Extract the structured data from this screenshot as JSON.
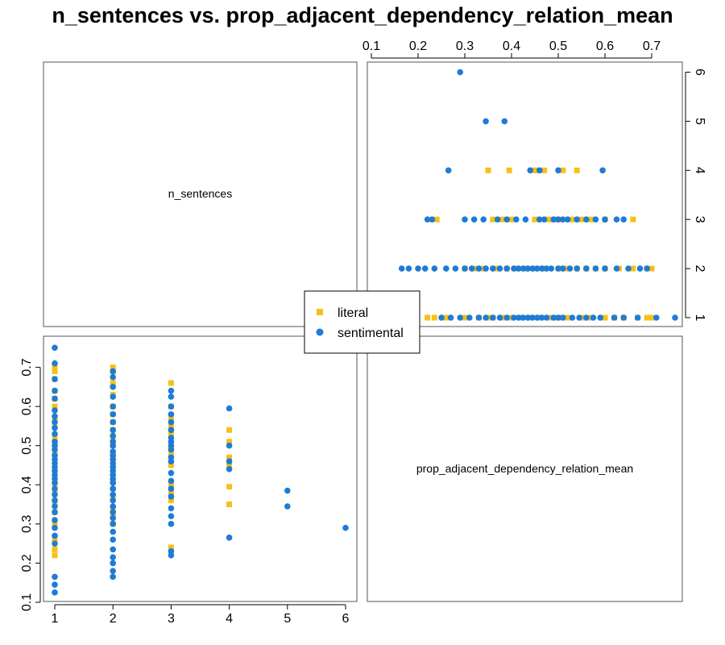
{
  "title": "n_sentences vs. prop_adjacent_dependency_relation_mean",
  "colors": {
    "literal": "#F5C118",
    "sentimental": "#1E7BD6",
    "frame": "#555555"
  },
  "legend": {
    "items": [
      {
        "label": "literal",
        "shape": "square"
      },
      {
        "label": "sentimental",
        "shape": "circle"
      }
    ]
  },
  "chart_data": {
    "type": "scatter",
    "variables": [
      "n_sentences",
      "prop_adjacent_dependency_relation_mean"
    ],
    "x_ticks": [
      1,
      2,
      3,
      4,
      5,
      6
    ],
    "y_ticks": [
      0.1,
      0.2,
      0.3,
      0.4,
      0.5,
      0.6,
      0.7
    ],
    "xlim": [
      1,
      6
    ],
    "ylim": [
      0.1,
      0.75
    ],
    "series": [
      {
        "name": "literal",
        "points": [
          [
            1,
            0.22
          ],
          [
            1,
            0.235
          ],
          [
            1,
            0.26
          ],
          [
            1,
            0.3
          ],
          [
            1,
            0.33
          ],
          [
            1,
            0.35
          ],
          [
            1,
            0.36
          ],
          [
            1,
            0.38
          ],
          [
            1,
            0.4
          ],
          [
            1,
            0.42
          ],
          [
            1,
            0.44
          ],
          [
            1,
            0.46
          ],
          [
            1,
            0.48
          ],
          [
            1,
            0.5
          ],
          [
            1,
            0.52
          ],
          [
            1,
            0.55
          ],
          [
            1,
            0.57
          ],
          [
            1,
            0.6
          ],
          [
            1,
            0.62
          ],
          [
            1,
            0.64
          ],
          [
            1,
            0.67
          ],
          [
            1,
            0.69
          ],
          [
            1,
            0.7
          ],
          [
            2,
            0.3
          ],
          [
            2,
            0.32
          ],
          [
            2,
            0.34
          ],
          [
            2,
            0.37
          ],
          [
            2,
            0.39
          ],
          [
            2,
            0.41
          ],
          [
            2,
            0.43
          ],
          [
            2,
            0.45
          ],
          [
            2,
            0.47
          ],
          [
            2,
            0.5
          ],
          [
            2,
            0.52
          ],
          [
            2,
            0.54
          ],
          [
            2,
            0.56
          ],
          [
            2,
            0.58
          ],
          [
            2,
            0.6
          ],
          [
            2,
            0.63
          ],
          [
            2,
            0.66
          ],
          [
            2,
            0.69
          ],
          [
            2,
            0.7
          ],
          [
            3,
            0.24
          ],
          [
            3,
            0.36
          ],
          [
            3,
            0.38
          ],
          [
            3,
            0.4
          ],
          [
            3,
            0.45
          ],
          [
            3,
            0.48
          ],
          [
            3,
            0.5
          ],
          [
            3,
            0.53
          ],
          [
            3,
            0.55
          ],
          [
            3,
            0.57
          ],
          [
            3,
            0.6
          ],
          [
            3,
            0.66
          ],
          [
            4,
            0.35
          ],
          [
            4,
            0.395
          ],
          [
            4,
            0.45
          ],
          [
            4,
            0.47
          ],
          [
            4,
            0.51
          ],
          [
            4,
            0.54
          ]
        ]
      },
      {
        "name": "sentimental",
        "points": [
          [
            1,
            0.125
          ],
          [
            1,
            0.145
          ],
          [
            1,
            0.165
          ],
          [
            1,
            0.25
          ],
          [
            1,
            0.27
          ],
          [
            1,
            0.29
          ],
          [
            1,
            0.31
          ],
          [
            1,
            0.33
          ],
          [
            1,
            0.345
          ],
          [
            1,
            0.36
          ],
          [
            1,
            0.375
          ],
          [
            1,
            0.39
          ],
          [
            1,
            0.405
          ],
          [
            1,
            0.415
          ],
          [
            1,
            0.425
          ],
          [
            1,
            0.435
          ],
          [
            1,
            0.445
          ],
          [
            1,
            0.455
          ],
          [
            1,
            0.465
          ],
          [
            1,
            0.475
          ],
          [
            1,
            0.49
          ],
          [
            1,
            0.5
          ],
          [
            1,
            0.51
          ],
          [
            1,
            0.53
          ],
          [
            1,
            0.545
          ],
          [
            1,
            0.56
          ],
          [
            1,
            0.575
          ],
          [
            1,
            0.59
          ],
          [
            1,
            0.62
          ],
          [
            1,
            0.64
          ],
          [
            1,
            0.67
          ],
          [
            1,
            0.71
          ],
          [
            1,
            0.75
          ],
          [
            2,
            0.165
          ],
          [
            2,
            0.18
          ],
          [
            2,
            0.2
          ],
          [
            2,
            0.215
          ],
          [
            2,
            0.235
          ],
          [
            2,
            0.26
          ],
          [
            2,
            0.28
          ],
          [
            2,
            0.3
          ],
          [
            2,
            0.315
          ],
          [
            2,
            0.33
          ],
          [
            2,
            0.345
          ],
          [
            2,
            0.36
          ],
          [
            2,
            0.375
          ],
          [
            2,
            0.39
          ],
          [
            2,
            0.405
          ],
          [
            2,
            0.415
          ],
          [
            2,
            0.425
          ],
          [
            2,
            0.435
          ],
          [
            2,
            0.445
          ],
          [
            2,
            0.455
          ],
          [
            2,
            0.465
          ],
          [
            2,
            0.475
          ],
          [
            2,
            0.485
          ],
          [
            2,
            0.5
          ],
          [
            2,
            0.51
          ],
          [
            2,
            0.525
          ],
          [
            2,
            0.54
          ],
          [
            2,
            0.56
          ],
          [
            2,
            0.58
          ],
          [
            2,
            0.6
          ],
          [
            2,
            0.625
          ],
          [
            2,
            0.65
          ],
          [
            2,
            0.675
          ],
          [
            2,
            0.69
          ],
          [
            3,
            0.22
          ],
          [
            3,
            0.23
          ],
          [
            3,
            0.3
          ],
          [
            3,
            0.32
          ],
          [
            3,
            0.34
          ],
          [
            3,
            0.37
          ],
          [
            3,
            0.39
          ],
          [
            3,
            0.41
          ],
          [
            3,
            0.43
          ],
          [
            3,
            0.46
          ],
          [
            3,
            0.47
          ],
          [
            3,
            0.49
          ],
          [
            3,
            0.5
          ],
          [
            3,
            0.51
          ],
          [
            3,
            0.52
          ],
          [
            3,
            0.54
          ],
          [
            3,
            0.56
          ],
          [
            3,
            0.58
          ],
          [
            3,
            0.6
          ],
          [
            3,
            0.625
          ],
          [
            3,
            0.64
          ],
          [
            4,
            0.265
          ],
          [
            4,
            0.44
          ],
          [
            4,
            0.46
          ],
          [
            4,
            0.5
          ],
          [
            4,
            0.595
          ],
          [
            5,
            0.345
          ],
          [
            5,
            0.385
          ],
          [
            6,
            0.29
          ]
        ]
      }
    ]
  }
}
